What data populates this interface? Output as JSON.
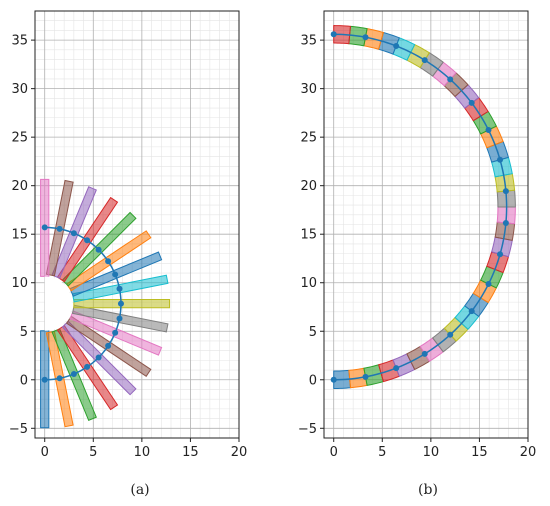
{
  "chart_data": [
    {
      "panel_label": "(a)",
      "type": "scatter",
      "description_free": true,
      "xlim": [
        -1,
        20
      ],
      "ylim": [
        -6,
        38
      ],
      "xticks": [
        0,
        5,
        10,
        15,
        20
      ],
      "yticks": [
        -5,
        0,
        5,
        10,
        15,
        20,
        25,
        30,
        35
      ],
      "grid": true,
      "minor_grid": true,
      "center": [
        0,
        7.85
      ],
      "spine_radius": 7.85,
      "inner_radius": 2.8,
      "bar_outer_start": 10.4,
      "bar_outer_end": 12.85,
      "bar_width": 0.85,
      "segments": 17,
      "colors": [
        "#1f77b4",
        "#ff7f0e",
        "#2ca02c",
        "#d62728",
        "#9467bd",
        "#8c564b",
        "#e377c2",
        "#7f7f7f",
        "#bcbd22",
        "#17becf"
      ],
      "node_color": "#1f77b4"
    },
    {
      "panel_label": "(b)",
      "type": "scatter",
      "xlim": [
        -1,
        20
      ],
      "ylim": [
        -6,
        38
      ],
      "xticks": [
        0,
        5,
        10,
        15,
        20
      ],
      "yticks": [
        -5,
        0,
        5,
        10,
        15,
        20,
        25,
        30,
        35
      ],
      "grid": true,
      "minor_grid": true,
      "center": [
        0,
        17.8
      ],
      "spine_radius": 17.8,
      "band_width": 1.8,
      "segments": 34,
      "colors": [
        "#1f77b4",
        "#ff7f0e",
        "#2ca02c",
        "#d62728",
        "#9467bd",
        "#8c564b",
        "#e377c2",
        "#7f7f7f",
        "#bcbd22",
        "#17becf"
      ],
      "node_color": "#1f77b4"
    }
  ]
}
